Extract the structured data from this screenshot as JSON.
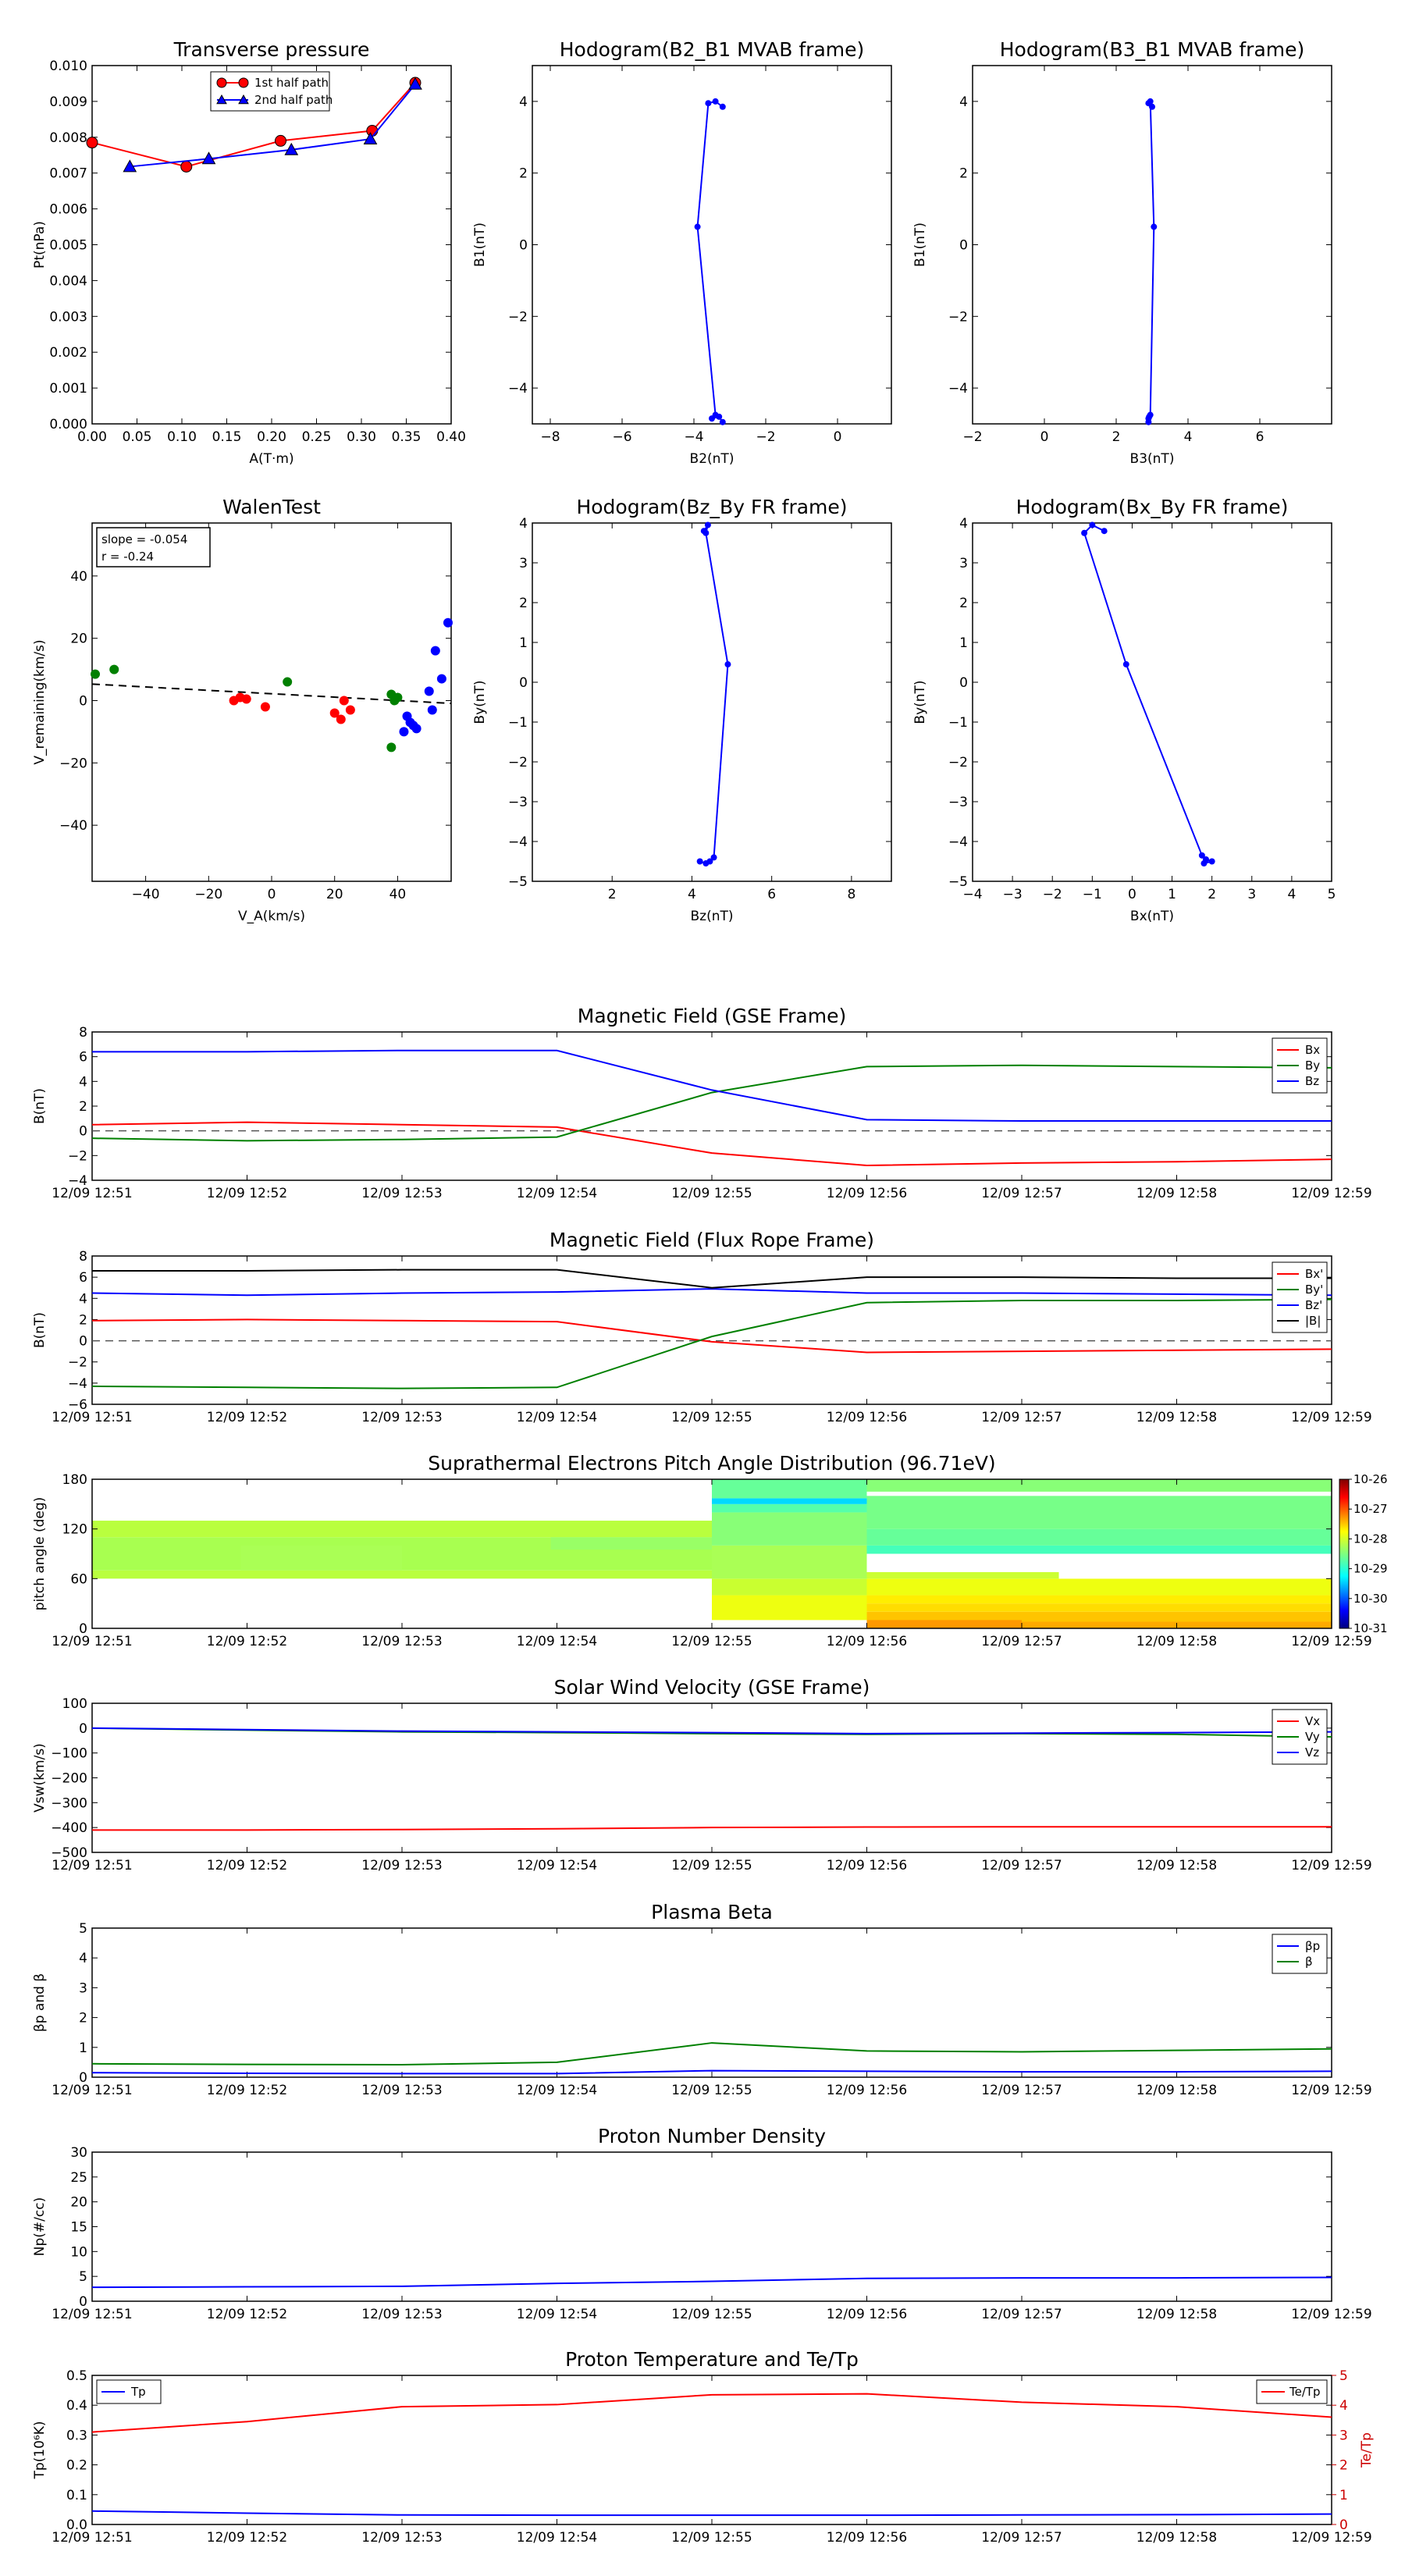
{
  "colors": {
    "red": "#ff0000",
    "green": "#008000",
    "blue": "#0000ff",
    "black": "#000000",
    "grey": "#555555",
    "darkred": "#cc0000"
  },
  "chart_data": [
    {
      "id": "tp",
      "type": "line",
      "title": "Transverse pressure",
      "xlabel": "A(T·m)",
      "ylabel": "Pt(nPa)",
      "xlim": [
        0,
        0.4
      ],
      "ylim": [
        0,
        0.01
      ],
      "xticks": [
        0,
        0.05,
        0.1,
        0.15,
        0.2,
        0.25,
        0.3,
        0.35,
        0.4
      ],
      "xticklabels": [
        "0.00",
        "0.05",
        "0.10",
        "0.15",
        "0.20",
        "0.25",
        "0.30",
        "0.35",
        "0.40"
      ],
      "yticks": [
        0,
        0.001,
        0.002,
        0.003,
        0.004,
        0.005,
        0.006,
        0.007,
        0.008,
        0.009,
        0.01
      ],
      "yticklabels": [
        "0.000",
        "0.001",
        "0.002",
        "0.003",
        "0.004",
        "0.005",
        "0.006",
        "0.007",
        "0.008",
        "0.009",
        "0.010"
      ],
      "legend": "top-center",
      "series": [
        {
          "name": "1st half path",
          "color": "red",
          "marker": "circle",
          "x": [
            0.0,
            0.105,
            0.21,
            0.312,
            0.36
          ],
          "y": [
            0.00785,
            0.00718,
            0.0079,
            0.00818,
            0.00952
          ]
        },
        {
          "name": "2nd half path",
          "color": "blue",
          "marker": "triangle",
          "x": [
            0.042,
            0.13,
            0.222,
            0.31,
            0.36
          ],
          "y": [
            0.00718,
            0.0074,
            0.00765,
            0.00795,
            0.00948
          ]
        }
      ]
    },
    {
      "id": "hb21",
      "type": "line",
      "title": "Hodogram(B2_B1 MVAB frame)",
      "xlabel": "B2(nT)",
      "ylabel": "B1(nT)",
      "xlim": [
        -8.5,
        1.5
      ],
      "ylim": [
        -5,
        5
      ],
      "xticks": [
        -8,
        -6,
        -4,
        -2,
        0
      ],
      "xticklabels": [
        "−8",
        "−6",
        "−4",
        "−2",
        "0"
      ],
      "yticks": [
        -4,
        -2,
        0,
        2,
        4
      ],
      "yticklabels": [
        "−4",
        "−2",
        "0",
        "2",
        "4"
      ],
      "series": [
        {
          "name": "",
          "color": "blue",
          "marker": "dot",
          "x": [
            -3.2,
            -3.4,
            -3.6,
            -3.9,
            -3.4,
            -3.5,
            -3.3,
            -3.2
          ],
          "y": [
            3.85,
            4.0,
            3.95,
            0.5,
            -4.75,
            -4.85,
            -4.8,
            -4.95
          ]
        }
      ]
    },
    {
      "id": "hb31",
      "type": "line",
      "title": "Hodogram(B3_B1 MVAB frame)",
      "xlabel": "B3(nT)",
      "ylabel": "B1(nT)",
      "xlim": [
        -2,
        8
      ],
      "ylim": [
        -5,
        5
      ],
      "xticks": [
        -2,
        0,
        2,
        4,
        6
      ],
      "xticklabels": [
        "−2",
        "0",
        "2",
        "4",
        "6"
      ],
      "yticks": [
        -4,
        -2,
        0,
        2,
        4
      ],
      "yticklabels": [
        "−4",
        "−2",
        "0",
        "2",
        "4"
      ],
      "series": [
        {
          "name": "",
          "color": "blue",
          "marker": "dot",
          "x": [
            3.0,
            2.9,
            2.95,
            3.05,
            2.95,
            2.9,
            2.92,
            2.9
          ],
          "y": [
            3.85,
            3.95,
            4.0,
            0.5,
            -4.75,
            -4.85,
            -4.8,
            -4.95
          ]
        }
      ]
    },
    {
      "id": "walen",
      "type": "scatter",
      "title": "WalenTest",
      "xlabel": "V_A(km/s)",
      "ylabel": "V_remaining(km/s)",
      "xlim": [
        -57,
        57
      ],
      "ylim": [
        -58,
        57
      ],
      "xticks": [
        -40,
        -20,
        0,
        20,
        40
      ],
      "xticklabels": [
        "−40",
        "−20",
        "0",
        "20",
        "40"
      ],
      "yticks": [
        -40,
        -20,
        0,
        20,
        40
      ],
      "yticklabels": [
        "−40",
        "−20",
        "0",
        "20",
        "40"
      ],
      "annotation": [
        "slope = -0.054",
        "r = -0.24"
      ],
      "fit": {
        "x": [
          -57,
          57
        ],
        "y": [
          5.3,
          -0.9
        ]
      },
      "points": [
        {
          "color": "green",
          "x": [
            -56,
            -50,
            5,
            38,
            39,
            40,
            38
          ],
          "y": [
            8.5,
            10,
            6,
            2,
            0,
            1,
            -15
          ]
        },
        {
          "color": "red",
          "x": [
            -12,
            -10,
            -8,
            -2,
            20,
            22,
            23,
            25
          ],
          "y": [
            0,
            1,
            0.5,
            -2,
            -4,
            -6,
            0,
            -3
          ]
        },
        {
          "color": "blue",
          "x": [
            42,
            43,
            44,
            45,
            46,
            50,
            51,
            52,
            54,
            56
          ],
          "y": [
            -10,
            -5,
            -7,
            -8,
            -9,
            3,
            -3,
            16,
            7,
            25
          ]
        }
      ]
    },
    {
      "id": "hbzy",
      "type": "line",
      "title": "Hodogram(Bz_By FR frame)",
      "xlabel": "Bz(nT)",
      "ylabel": "By(nT)",
      "xlim": [
        0,
        9
      ],
      "ylim": [
        -5,
        4
      ],
      "xticks": [
        2,
        4,
        6,
        8
      ],
      "xticklabels": [
        "2",
        "4",
        "6",
        "8"
      ],
      "yticks": [
        -5,
        -4,
        -3,
        -2,
        -1,
        0,
        1,
        2,
        3,
        4
      ],
      "yticklabels": [
        "−5",
        "−4",
        "−3",
        "−2",
        "−1",
        "0",
        "1",
        "2",
        "3",
        "4"
      ],
      "series": [
        {
          "name": "",
          "color": "blue",
          "marker": "dot",
          "x": [
            4.3,
            4.4,
            4.35,
            4.9,
            4.55,
            4.45,
            4.35,
            4.2
          ],
          "y": [
            3.8,
            3.95,
            3.75,
            0.45,
            -4.4,
            -4.5,
            -4.55,
            -4.5
          ]
        }
      ]
    },
    {
      "id": "hbxy",
      "type": "line",
      "title": "Hodogram(Bx_By FR frame)",
      "xlabel": "Bx(nT)",
      "ylabel": "By(nT)",
      "xlim": [
        -4,
        5
      ],
      "ylim": [
        -5,
        4
      ],
      "xticks": [
        -4,
        -3,
        -2,
        -1,
        0,
        1,
        2,
        3,
        4,
        5
      ],
      "xticklabels": [
        "−4",
        "−3",
        "−2",
        "−1",
        "0",
        "1",
        "2",
        "3",
        "4",
        "5"
      ],
      "yticks": [
        -5,
        -4,
        -3,
        -2,
        -1,
        0,
        1,
        2,
        3,
        4
      ],
      "yticklabels": [
        "−5",
        "−4",
        "−3",
        "−2",
        "−1",
        "0",
        "1",
        "2",
        "3",
        "4"
      ],
      "series": [
        {
          "name": "",
          "color": "blue",
          "marker": "dot",
          "x": [
            -0.7,
            -1.0,
            -1.2,
            -0.15,
            1.75,
            1.85,
            2.0,
            1.8
          ],
          "y": [
            3.8,
            3.95,
            3.75,
            0.45,
            -4.35,
            -4.45,
            -4.5,
            -4.55
          ]
        }
      ]
    },
    {
      "id": "bgse",
      "type": "line",
      "title": "Magnetic Field (GSE Frame)",
      "ylabel": "B(nT)",
      "ylim": [
        -4,
        8
      ],
      "yticks": [
        -4,
        -2,
        0,
        2,
        4,
        6,
        8
      ],
      "yticklabels": [
        "−4",
        "−2",
        "0",
        "2",
        "4",
        "6",
        "8"
      ],
      "zero": true,
      "legend": "top-right",
      "series": [
        {
          "name": "Bx",
          "color": "red",
          "values": [
            0.5,
            0.7,
            0.5,
            0.3,
            -1.8,
            -2.8,
            -2.6,
            -2.5,
            -2.3
          ]
        },
        {
          "name": "By",
          "color": "green",
          "values": [
            -0.6,
            -0.8,
            -0.7,
            -0.5,
            3.1,
            5.2,
            5.3,
            5.2,
            5.1
          ]
        },
        {
          "name": "Bz",
          "color": "blue",
          "values": [
            6.4,
            6.4,
            6.5,
            6.5,
            3.3,
            0.9,
            0.8,
            0.8,
            0.8
          ]
        }
      ]
    },
    {
      "id": "bfr",
      "type": "line",
      "title": "Magnetic Field (Flux Rope Frame)",
      "ylabel": "B(nT)",
      "ylim": [
        -6,
        8
      ],
      "yticks": [
        -6,
        -4,
        -2,
        0,
        2,
        4,
        6,
        8
      ],
      "yticklabels": [
        "−6",
        "−4",
        "−2",
        "0",
        "2",
        "4",
        "6",
        "8"
      ],
      "zero": true,
      "legend": "top-right",
      "series": [
        {
          "name": "Bx'",
          "color": "red",
          "values": [
            1.9,
            2.0,
            1.9,
            1.8,
            -0.1,
            -1.1,
            -1.0,
            -0.9,
            -0.8
          ]
        },
        {
          "name": "By'",
          "color": "green",
          "values": [
            -4.3,
            -4.4,
            -4.5,
            -4.4,
            0.4,
            3.6,
            3.8,
            3.8,
            3.9
          ]
        },
        {
          "name": "Bz'",
          "color": "blue",
          "values": [
            4.5,
            4.3,
            4.5,
            4.6,
            4.9,
            4.5,
            4.5,
            4.4,
            4.3
          ]
        },
        {
          "name": "|B|",
          "color": "black",
          "values": [
            6.6,
            6.6,
            6.7,
            6.7,
            5.0,
            6.0,
            6.0,
            5.9,
            5.9
          ]
        }
      ]
    },
    {
      "id": "pad",
      "type": "heatmap",
      "title": "Suprathermal Electrons Pitch Angle Distribution (96.71eV)",
      "ylabel": "pitch angle (deg)",
      "ylim": [
        0,
        180
      ],
      "yticks": [
        0,
        60,
        120,
        180
      ],
      "yticklabels": [
        "0",
        "60",
        "120",
        "180"
      ],
      "colorbar": {
        "labels": [
          "10-26",
          "10-27",
          "10-28",
          "10-29",
          "10-30",
          "10-31"
        ]
      }
    },
    {
      "id": "vsw",
      "type": "line",
      "title": "Solar Wind Velocity (GSE Frame)",
      "ylabel": "Vsw(km/s)",
      "ylim": [
        -500,
        100
      ],
      "yticks": [
        -500,
        -400,
        -300,
        -200,
        -100,
        0,
        100
      ],
      "yticklabels": [
        "−500",
        "−400",
        "−300",
        "−200",
        "−100",
        "0",
        "100"
      ],
      "legend": "top-right",
      "series": [
        {
          "name": "Vx",
          "color": "red",
          "values": [
            -410,
            -410,
            -408,
            -405,
            -400,
            -398,
            -397,
            -397,
            -397
          ]
        },
        {
          "name": "Vy",
          "color": "green",
          "values": [
            0,
            -8,
            -15,
            -18,
            -22,
            -25,
            -22,
            -25,
            -35
          ]
        },
        {
          "name": "Vz",
          "color": "blue",
          "values": [
            0,
            -6,
            -12,
            -15,
            -18,
            -22,
            -20,
            -18,
            -15
          ]
        }
      ]
    },
    {
      "id": "beta",
      "type": "line",
      "title": "Plasma Beta",
      "ylabel": "βp and β",
      "ylim": [
        0,
        5
      ],
      "yticks": [
        0,
        1,
        2,
        3,
        4,
        5
      ],
      "yticklabels": [
        "0",
        "1",
        "2",
        "3",
        "4",
        "5"
      ],
      "legend": "top-right",
      "series": [
        {
          "name": "βp",
          "color": "blue",
          "values": [
            0.15,
            0.13,
            0.12,
            0.12,
            0.22,
            0.2,
            0.18,
            0.18,
            0.2
          ]
        },
        {
          "name": "β",
          "color": "green",
          "values": [
            0.45,
            0.43,
            0.42,
            0.5,
            1.15,
            0.88,
            0.85,
            0.9,
            0.95
          ]
        }
      ]
    },
    {
      "id": "np",
      "type": "line",
      "title": "Proton Number Density",
      "ylabel": "Np(#/cc)",
      "ylim": [
        0,
        30
      ],
      "yticks": [
        0,
        5,
        10,
        15,
        20,
        25,
        30
      ],
      "yticklabels": [
        "0",
        "5",
        "10",
        "15",
        "20",
        "25",
        "30"
      ],
      "series": [
        {
          "name": "",
          "color": "blue",
          "values": [
            2.8,
            2.9,
            3.0,
            3.6,
            4.0,
            4.6,
            4.7,
            4.7,
            4.8
          ]
        }
      ]
    },
    {
      "id": "temp",
      "type": "line",
      "title": "Proton Temperature and Te/Tp",
      "ylabel": "Tp(10⁶K)",
      "ylabel2": "Te/Tp",
      "ylim": [
        0,
        0.5
      ],
      "yticks": [
        0,
        0.1,
        0.2,
        0.3,
        0.4,
        0.5
      ],
      "yticklabels": [
        "0.0",
        "0.1",
        "0.2",
        "0.3",
        "0.4",
        "0.5"
      ],
      "ylim2": [
        0,
        5
      ],
      "yticks2": [
        0,
        1,
        2,
        3,
        4,
        5
      ],
      "yticklabels2": [
        "0",
        "1",
        "2",
        "3",
        "4",
        "5"
      ],
      "series": [
        {
          "name": "Tp",
          "color": "blue",
          "axis": "left",
          "values": [
            0.045,
            0.038,
            0.032,
            0.031,
            0.031,
            0.031,
            0.032,
            0.033,
            0.035
          ]
        },
        {
          "name": "Te/Tp",
          "color": "red",
          "axis": "right",
          "values": [
            3.1,
            3.45,
            3.95,
            4.02,
            4.35,
            4.38,
            4.1,
            3.95,
            3.6
          ]
        }
      ]
    }
  ],
  "time_axis": {
    "labels": [
      "12/09 12:51",
      "12/09 12:52",
      "12/09 12:53",
      "12/09 12:54",
      "12/09 12:55",
      "12/09 12:56",
      "12/09 12:57",
      "12/09 12:58",
      "12/09 12:59"
    ]
  }
}
